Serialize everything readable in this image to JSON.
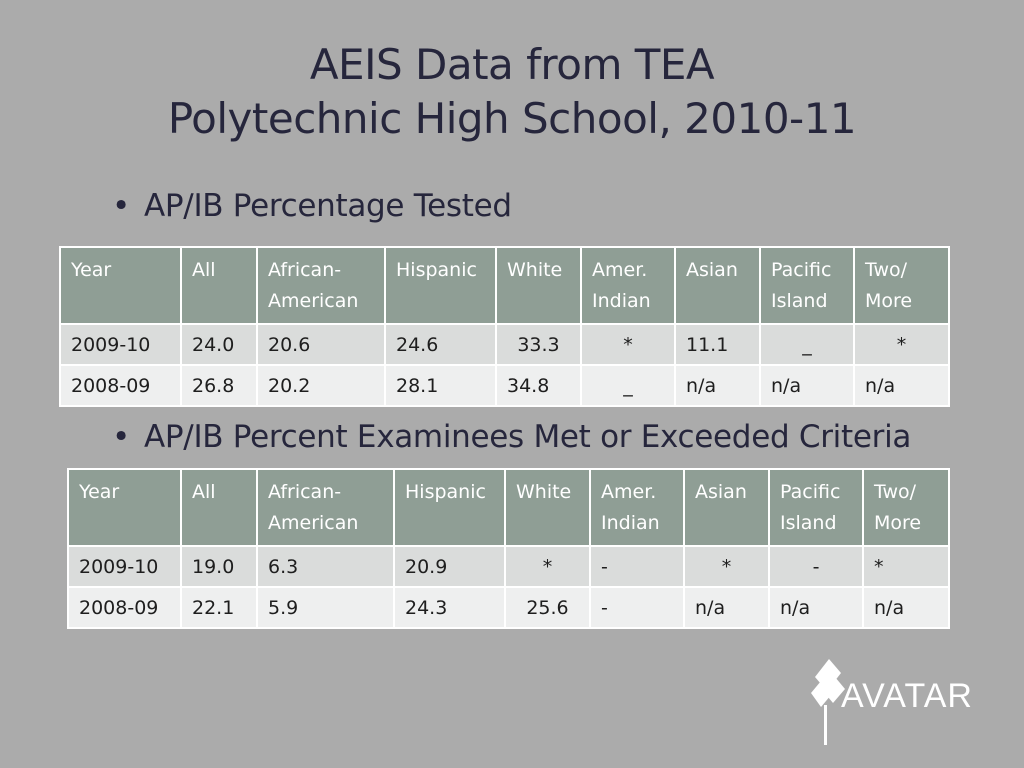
{
  "title": {
    "line1": "AEIS Data from TEA",
    "line2": "Polytechnic High School, 2010-11"
  },
  "bullets": [
    "AP/IB Percentage Tested",
    "AP/IB Percent Examinees Met or Exceeded Criteria"
  ],
  "table1": {
    "headers": [
      "Year",
      "All",
      "African-\nAmerican",
      "Hispanic",
      "White",
      "Amer.\nIndian",
      "Asian",
      "Pacific\nIsland",
      "Two/\nMore"
    ],
    "rows": [
      [
        "2009-10",
        "24.0",
        "20.6",
        "24.6",
        "33.3",
        "*",
        "11.1",
        "_",
        "*"
      ],
      [
        "2008-09",
        "26.8",
        "20.2",
        "28.1",
        "34.8",
        "_",
        "n/a",
        "n/a",
        "n/a"
      ]
    ]
  },
  "table2": {
    "headers": [
      "Year",
      "All",
      "African-\nAmerican",
      "Hispanic",
      "White",
      "Amer.\nIndian",
      "Asian",
      "Pacific\nIsland",
      "Two/\nMore"
    ],
    "rows": [
      [
        "2009-10",
        "19.0",
        "6.3",
        "20.9",
        "*",
        "-",
        "*",
        "-",
        "*"
      ],
      [
        "2008-09",
        "22.1",
        "5.9",
        "24.3",
        "25.6",
        "-",
        "n/a",
        "n/a",
        "n/a"
      ]
    ]
  },
  "logo": {
    "text": "AVATAR",
    "icon": "avatar-logo-icon"
  },
  "colors": {
    "background": "#ababab",
    "header_fill": "#8f9e95",
    "row_odd": "#dadcdb",
    "row_even": "#eeefef",
    "title_text": "#26263c"
  }
}
